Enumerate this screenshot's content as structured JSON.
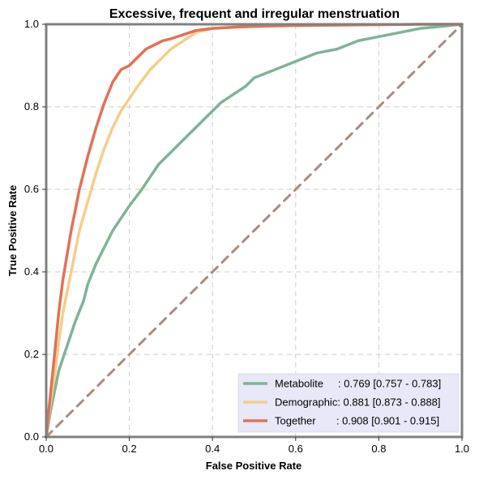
{
  "chart_data": {
    "type": "line",
    "title": "Excessive, frequent and irregular menstruation",
    "xlabel": "False Positive Rate",
    "ylabel": "True Positive Rate",
    "xlim": [
      0,
      1
    ],
    "ylim": [
      0,
      1
    ],
    "x_ticks": [
      "0.0",
      "0.2",
      "0.4",
      "0.6",
      "0.8",
      "1.0"
    ],
    "y_ticks": [
      "0.0",
      "0.2",
      "0.4",
      "0.6",
      "0.8",
      "1.0"
    ],
    "grid": true,
    "legend_position": "bottom-right",
    "legend_background": "#e8e8f8",
    "series": [
      {
        "name": "Metabolite",
        "label": "Metabolite     : 0.769 [0.757 - 0.783]",
        "color": "#7fb496",
        "x": [
          0,
          0.01,
          0.02,
          0.03,
          0.05,
          0.07,
          0.09,
          0.1,
          0.12,
          0.14,
          0.16,
          0.18,
          0.2,
          0.23,
          0.25,
          0.27,
          0.3,
          0.33,
          0.36,
          0.4,
          0.42,
          0.45,
          0.48,
          0.5,
          0.55,
          0.6,
          0.65,
          0.7,
          0.75,
          0.8,
          0.85,
          0.9,
          0.95,
          1.0
        ],
        "y": [
          0,
          0.06,
          0.11,
          0.16,
          0.22,
          0.28,
          0.33,
          0.37,
          0.42,
          0.46,
          0.5,
          0.53,
          0.56,
          0.6,
          0.63,
          0.66,
          0.69,
          0.72,
          0.75,
          0.79,
          0.81,
          0.83,
          0.85,
          0.87,
          0.89,
          0.91,
          0.93,
          0.94,
          0.96,
          0.97,
          0.98,
          0.99,
          0.995,
          1.0
        ]
      },
      {
        "name": "Demographic",
        "label": "Demographic: 0.881 [0.873 - 0.888]",
        "color": "#f5cd8a",
        "x": [
          0,
          0.01,
          0.02,
          0.03,
          0.04,
          0.06,
          0.08,
          0.1,
          0.12,
          0.14,
          0.16,
          0.18,
          0.2,
          0.22,
          0.25,
          0.28,
          0.3,
          0.33,
          0.36,
          0.4,
          0.45,
          0.5,
          0.6,
          0.7,
          0.8,
          0.9,
          1.0
        ],
        "y": [
          0,
          0.08,
          0.15,
          0.23,
          0.3,
          0.4,
          0.5,
          0.57,
          0.64,
          0.7,
          0.75,
          0.79,
          0.82,
          0.85,
          0.89,
          0.92,
          0.94,
          0.96,
          0.98,
          0.99,
          0.993,
          0.995,
          0.997,
          0.998,
          0.999,
          1.0,
          1.0
        ]
      },
      {
        "name": "Together",
        "label": "Together       : 0.908 [0.901 - 0.915]",
        "color": "#e07258",
        "x": [
          0,
          0.01,
          0.02,
          0.03,
          0.04,
          0.06,
          0.08,
          0.1,
          0.12,
          0.14,
          0.16,
          0.18,
          0.2,
          0.22,
          0.24,
          0.26,
          0.28,
          0.3,
          0.33,
          0.36,
          0.4,
          0.45,
          0.5,
          0.6,
          0.7,
          0.8,
          0.9,
          1.0
        ],
        "y": [
          0,
          0.1,
          0.2,
          0.3,
          0.38,
          0.5,
          0.6,
          0.68,
          0.75,
          0.81,
          0.86,
          0.89,
          0.9,
          0.92,
          0.94,
          0.95,
          0.96,
          0.965,
          0.975,
          0.985,
          0.99,
          0.993,
          0.995,
          0.997,
          0.998,
          0.999,
          1.0,
          1.0
        ]
      },
      {
        "name": "",
        "style": "dashed",
        "color": "#a88c80",
        "x": [
          0,
          1
        ],
        "y": [
          0,
          1
        ]
      }
    ]
  }
}
